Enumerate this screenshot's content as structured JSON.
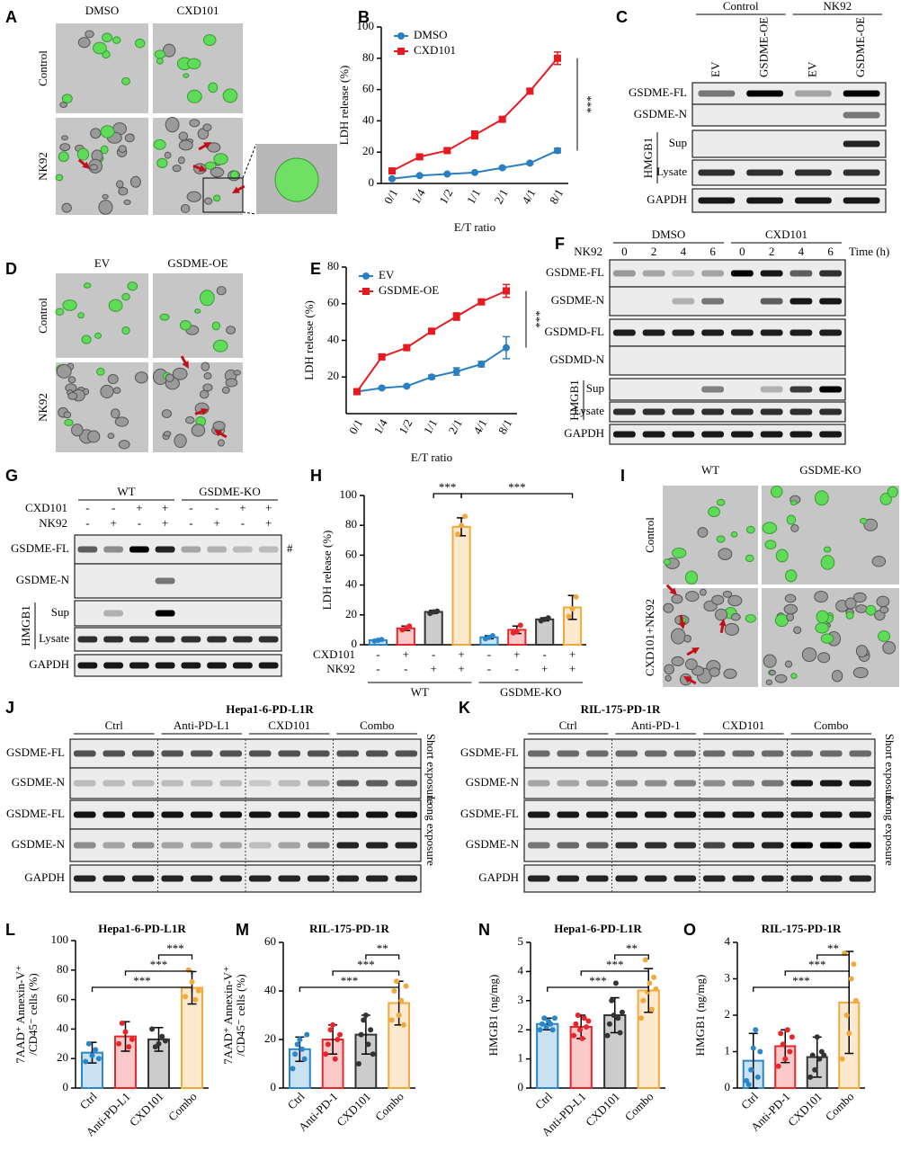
{
  "images": [
    {
      "panel": "A",
      "columns": [
        "DMSO",
        "CXD101"
      ],
      "rows": [
        "Control",
        "NK92"
      ]
    },
    {
      "panel": "D",
      "columns": [
        "EV",
        "GSDME-OE"
      ],
      "rows": [
        "Control",
        "NK92"
      ]
    },
    {
      "panel": "I",
      "columns": [
        "WT",
        "GSDME-KO"
      ],
      "rows": [
        "Control",
        "CXD101+NK92"
      ]
    }
  ],
  "blots": [
    {
      "panel": "C",
      "groups": [
        "Control",
        "NK92"
      ],
      "lanes": [
        "EV",
        "GSDME-OE",
        "EV",
        "GSDME-OE"
      ],
      "rows": [
        "GSDME-FL",
        "GSDME-N",
        "Sup",
        "Lysate",
        "GAPDH"
      ],
      "bracket": "HMGB1"
    },
    {
      "panel": "F",
      "groups": [
        "DMSO",
        "CXD101"
      ],
      "lane_title": "NK92",
      "lanes": [
        "0",
        "2",
        "4",
        "6",
        "0",
        "2",
        "4",
        "6"
      ],
      "lane_unit": "Time (h)",
      "rows": [
        "GSDME-FL",
        "GSDME-N",
        "GSDMD-FL",
        "GSDMD-N",
        "Sup",
        "Lysate",
        "GAPDH"
      ],
      "bracket": "HMGB1"
    },
    {
      "panel": "G",
      "groups": [
        "WT",
        "GSDME-KO"
      ],
      "treatments": [
        {
          "name": "CXD101",
          "signs": [
            "-",
            "-",
            "+",
            "+",
            "-",
            "-",
            "+",
            "+"
          ]
        },
        {
          "name": "NK92",
          "signs": [
            "-",
            "+",
            "-",
            "+",
            "-",
            "+",
            "-",
            "+"
          ]
        }
      ],
      "rows": [
        "GSDME-FL",
        "GSDME-N",
        "Sup",
        "Lysate",
        "GAPDH"
      ],
      "bracket": "HMGB1",
      "note": "#"
    },
    {
      "panel": "J",
      "title": "Hepa1-6-PD-L1R",
      "groups": [
        "Ctrl",
        "Anti-PD-L1",
        "CXD101",
        "Combo"
      ],
      "rows": [
        "GSDME-FL",
        "GSDME-N",
        "GSDME-FL",
        "GSDME-N",
        "GAPDH"
      ],
      "exposures": [
        "Short exposure",
        "Long exposure"
      ]
    },
    {
      "panel": "K",
      "title": "RIL-175-PD-1R",
      "groups": [
        "Ctrl",
        "Anti-PD-1",
        "CXD101",
        "Combo"
      ],
      "rows": [
        "GSDME-FL",
        "GSDME-N",
        "GSDME-FL",
        "GSDME-N",
        "GAPDH"
      ],
      "exposures": [
        "Short exposure",
        "Long exposure"
      ]
    }
  ],
  "chart_data": [
    {
      "panel": "B",
      "type": "line",
      "ylabel": "LDH release (%)",
      "xlabel": "E/T ratio",
      "categories": [
        "0/1",
        "1/4",
        "1/2",
        "1/1",
        "2/1",
        "4/1",
        "8/1"
      ],
      "series": [
        {
          "name": "DMSO",
          "color": "#2a7fc0",
          "marker": "circle",
          "values": [
            3,
            5,
            6,
            7,
            10,
            13,
            21
          ],
          "errors": [
            0.5,
            0.5,
            0.5,
            0.5,
            0.8,
            0.8,
            1.5
          ]
        },
        {
          "name": "CXD101",
          "color": "#e8191f",
          "marker": "square",
          "values": [
            8,
            17,
            21,
            31,
            41,
            59,
            80
          ],
          "errors": [
            1,
            1,
            1,
            2.5,
            1.5,
            1.5,
            4
          ]
        }
      ],
      "ylim": [
        0,
        100
      ],
      "yticks": [
        0,
        20,
        40,
        60,
        80,
        100
      ],
      "legend": "upper-left",
      "annotations": [
        "***"
      ]
    },
    {
      "panel": "E",
      "type": "line",
      "ylabel": "LDH release (%)",
      "xlabel": "E/T ratio",
      "categories": [
        "0/1",
        "1/4",
        "1/2",
        "1/1",
        "2/1",
        "4/1",
        "8/1"
      ],
      "series": [
        {
          "name": "EV",
          "color": "#2a7fc0",
          "marker": "circle",
          "values": [
            12,
            14,
            15,
            20,
            23,
            27,
            36
          ],
          "errors": [
            0.5,
            0.5,
            0.5,
            1,
            2,
            1.5,
            6
          ]
        },
        {
          "name": "GSDME-OE",
          "color": "#e8191f",
          "marker": "square",
          "values": [
            12,
            31,
            36,
            45,
            53,
            61,
            67
          ],
          "errors": [
            0.5,
            1.5,
            1,
            0.5,
            2,
            1.5,
            3.5
          ]
        }
      ],
      "ylim": [
        0,
        80
      ],
      "yticks": [
        20,
        40,
        60,
        80
      ],
      "legend": "upper-left",
      "annotations": [
        "***"
      ]
    },
    {
      "panel": "H",
      "type": "bar",
      "ylabel": "LDH release (%)",
      "values": [
        3,
        11,
        22,
        79,
        5,
        10,
        17,
        25
      ],
      "errors": [
        0.5,
        1.5,
        1,
        6,
        1,
        2.5,
        1,
        8
      ],
      "points": [
        [
          2.5,
          3,
          3.5
        ],
        [
          10,
          11,
          12.5
        ],
        [
          21,
          22,
          22.5
        ],
        [
          74,
          80,
          86
        ],
        [
          4,
          5,
          6
        ],
        [
          8,
          9,
          13
        ],
        [
          16,
          17,
          18
        ],
        [
          19,
          24,
          32
        ]
      ],
      "colors": [
        "#2a86c8",
        "#e8262a",
        "#333333",
        "#f2a93b",
        "#2a86c8",
        "#e8262a",
        "#333333",
        "#f2a93b"
      ],
      "treatments": [
        {
          "name": "CXD101",
          "signs": [
            "-",
            "+",
            "-",
            "+",
            "-",
            "+",
            "-",
            "+"
          ]
        },
        {
          "name": "NK92",
          "signs": [
            "-",
            "-",
            "+",
            "+",
            "-",
            "-",
            "+",
            "+"
          ]
        }
      ],
      "groups": [
        "WT",
        "GSDME-KO"
      ],
      "ylim": [
        0,
        100
      ],
      "yticks": [
        0,
        20,
        40,
        60,
        80,
        100
      ],
      "annotations": [
        "***",
        "***"
      ]
    },
    {
      "panel": "L",
      "type": "bar",
      "title": "Hepa1-6-PD-L1R",
      "ylabel": [
        "7AAD⁺ Annexin-V⁺",
        "/CD45⁻ cells (%)"
      ],
      "categories": [
        "Ctrl",
        "Anti-PD-L1",
        "CXD101",
        "Combo"
      ],
      "values": [
        24,
        35,
        33,
        68
      ],
      "errors": [
        7,
        10,
        8,
        11
      ],
      "points": [
        [
          18,
          30,
          22,
          26,
          20
        ],
        [
          30,
          44,
          38,
          28,
          33
        ],
        [
          40,
          28,
          30,
          35,
          32
        ],
        [
          62,
          80,
          72,
          60,
          66
        ]
      ],
      "colors": [
        "#2a86c8",
        "#e8262a",
        "#333333",
        "#f2a93b"
      ],
      "ylim": [
        0,
        100
      ],
      "yticks": [
        0,
        20,
        40,
        60,
        80,
        100
      ],
      "annotations": [
        "***",
        "***",
        "***"
      ]
    },
    {
      "panel": "M",
      "type": "bar",
      "title": "RIL-175-PD-1R",
      "ylabel": [
        "7AAD⁺ Annexin-V⁺",
        "/CD45⁻ cells (%)"
      ],
      "categories": [
        "Ctrl",
        "Anti-PD-1",
        "CXD101",
        "Combo"
      ],
      "values": [
        16,
        20,
        22,
        35
      ],
      "errors": [
        5,
        6,
        8,
        9
      ],
      "points": [
        [
          8,
          14,
          18,
          20,
          16,
          12,
          22
        ],
        [
          14,
          18,
          24,
          26,
          12,
          20,
          22
        ],
        [
          10,
          22,
          28,
          30,
          18,
          24,
          14
        ],
        [
          28,
          40,
          44,
          30,
          36,
          26,
          42
        ]
      ],
      "colors": [
        "#2a86c8",
        "#e8262a",
        "#333333",
        "#f2a93b"
      ],
      "ylim": [
        0,
        60
      ],
      "yticks": [
        0,
        20,
        40,
        60
      ],
      "annotations": [
        "***",
        "***",
        "**"
      ]
    },
    {
      "panel": "N",
      "type": "bar",
      "title": "Hepa1-6-PD-L1R",
      "ylabel": "HMGB1 (ng/mg)",
      "categories": [
        "Ctrl",
        "Anti-PD-L1",
        "CXD101",
        "Combo"
      ],
      "values": [
        2.2,
        2.1,
        2.5,
        3.35
      ],
      "errors": [
        0.2,
        0.4,
        0.6,
        0.75
      ],
      "points": [
        [
          2.0,
          2.2,
          2.4,
          2.1,
          2.3,
          2.2,
          2.0,
          2.4
        ],
        [
          1.8,
          2.2,
          2.5,
          2.0,
          1.7,
          2.4,
          2.1,
          2.3
        ],
        [
          1.8,
          2.2,
          3.0,
          2.5,
          3.6,
          2.4,
          1.9,
          2.6
        ],
        [
          2.4,
          3.0,
          4.4,
          3.3,
          3.6,
          2.7,
          3.8,
          3.4
        ]
      ],
      "colors": [
        "#2a86c8",
        "#e8262a",
        "#333333",
        "#f2a93b"
      ],
      "ylim": [
        0,
        5
      ],
      "yticks": [
        0,
        1,
        2,
        3,
        4,
        5
      ],
      "annotations": [
        "***",
        "***",
        "**"
      ]
    },
    {
      "panel": "O",
      "type": "bar",
      "title": "RIL-175-PD-1R",
      "ylabel": "HMGB1 (ng/mg)",
      "categories": [
        "Ctrl",
        "Anti-PD-1",
        "CXD101",
        "Combo"
      ],
      "values": [
        0.75,
        1.15,
        0.85,
        2.35
      ],
      "errors": [
        0.75,
        0.45,
        0.55,
        1.4
      ],
      "points": [
        [
          0.2,
          0.1,
          0.5,
          1.1,
          1.6,
          0.3,
          1.0
        ],
        [
          0.6,
          1.5,
          1.2,
          0.8,
          1.6,
          1.0,
          1.4
        ],
        [
          0.3,
          0.9,
          0.5,
          1.4,
          0.8,
          1.0,
          0.9
        ],
        [
          0.8,
          3.7,
          2.0,
          1.5,
          3.0,
          3.4,
          2.4
        ]
      ],
      "colors": [
        "#2a86c8",
        "#e8262a",
        "#333333",
        "#f2a93b"
      ],
      "ylim": [
        0,
        4
      ],
      "yticks": [
        0,
        1,
        2,
        3,
        4
      ],
      "annotations": [
        "***",
        "***",
        "**"
      ]
    }
  ]
}
